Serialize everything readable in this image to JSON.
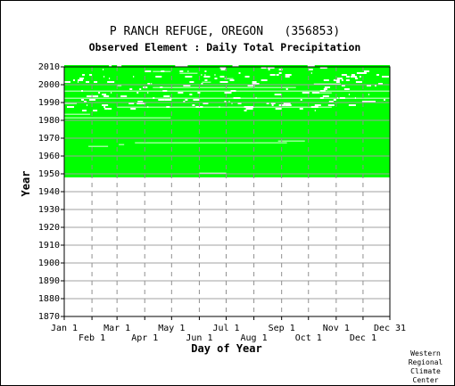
{
  "chart_data": {
    "type": "heatmap",
    "title": "P RANCH REFUGE, OREGON   (356853)",
    "subtitle": "Observed Element : Daily Total Precipitation",
    "xlabel": "Day of Year",
    "ylabel": "Year",
    "xlim": [
      1,
      365
    ],
    "ylim": [
      1870,
      2010
    ],
    "y_ticks": [
      1870,
      1880,
      1890,
      1900,
      1910,
      1920,
      1930,
      1940,
      1950,
      1960,
      1970,
      1980,
      1990,
      2000,
      2010
    ],
    "x_ticks_top_row": [
      {
        "label": "Jan 1",
        "day": 1
      },
      {
        "label": "Mar 1",
        "day": 60
      },
      {
        "label": "May 1",
        "day": 121
      },
      {
        "label": "Jul 1",
        "day": 182
      },
      {
        "label": "Sep 1",
        "day": 244
      },
      {
        "label": "Nov 1",
        "day": 305
      },
      {
        "label": "Dec 31",
        "day": 365
      }
    ],
    "x_ticks_bottom_row": [
      {
        "label": "Feb 1",
        "day": 32
      },
      {
        "label": "Apr 1",
        "day": 91
      },
      {
        "label": "Jun 1",
        "day": 152
      },
      {
        "label": "Aug 1",
        "day": 213
      },
      {
        "label": "Oct 1",
        "day": 274
      },
      {
        "label": "Dec 1",
        "day": 335
      }
    ],
    "data_color": "#00ff00",
    "grid": true,
    "coverage": {
      "first_year": 1948,
      "last_year": 2010,
      "full_years_start": 1948,
      "full_years_end": 1984,
      "sparse_years_start": 1985,
      "sparse_years_end": 2010
    },
    "gaps": [
      {
        "year": 1950,
        "day_start": 152,
        "day_end": 182
      },
      {
        "year": 1965,
        "day_start": 28,
        "day_end": 50
      },
      {
        "year": 1966,
        "day_start": 62,
        "day_end": 68
      },
      {
        "year": 1967,
        "day_start": 80,
        "day_end": 250
      },
      {
        "year": 1968,
        "day_start": 240,
        "day_end": 270
      },
      {
        "year": 1981,
        "day_start": 1,
        "day_end": 120
      },
      {
        "year": 1983,
        "day_start": 1,
        "day_end": 30
      },
      {
        "year": 1987,
        "day_start": 60,
        "day_end": 300
      },
      {
        "year": 1989,
        "day_start": 1,
        "day_end": 15
      },
      {
        "year": 1992,
        "day_start": 1,
        "day_end": 365
      },
      {
        "year": 1995,
        "day_start": 280,
        "day_end": 300
      },
      {
        "year": 1996,
        "day_start": 1,
        "day_end": 365
      },
      {
        "year": 1998,
        "day_start": 100,
        "day_end": 260
      },
      {
        "year": 1999,
        "day_start": 60,
        "day_end": 65
      },
      {
        "year": 2000,
        "day_start": 280,
        "day_end": 310
      },
      {
        "year": 2001,
        "day_start": 155,
        "day_end": 165
      },
      {
        "year": 2003,
        "day_start": 180,
        "day_end": 190
      },
      {
        "year": 2006,
        "day_start": 130,
        "day_end": 150
      },
      {
        "year": 2007,
        "day_start": 100,
        "day_end": 120
      }
    ]
  },
  "credit": [
    "Western",
    "Regional",
    "Climate",
    "Center"
  ]
}
